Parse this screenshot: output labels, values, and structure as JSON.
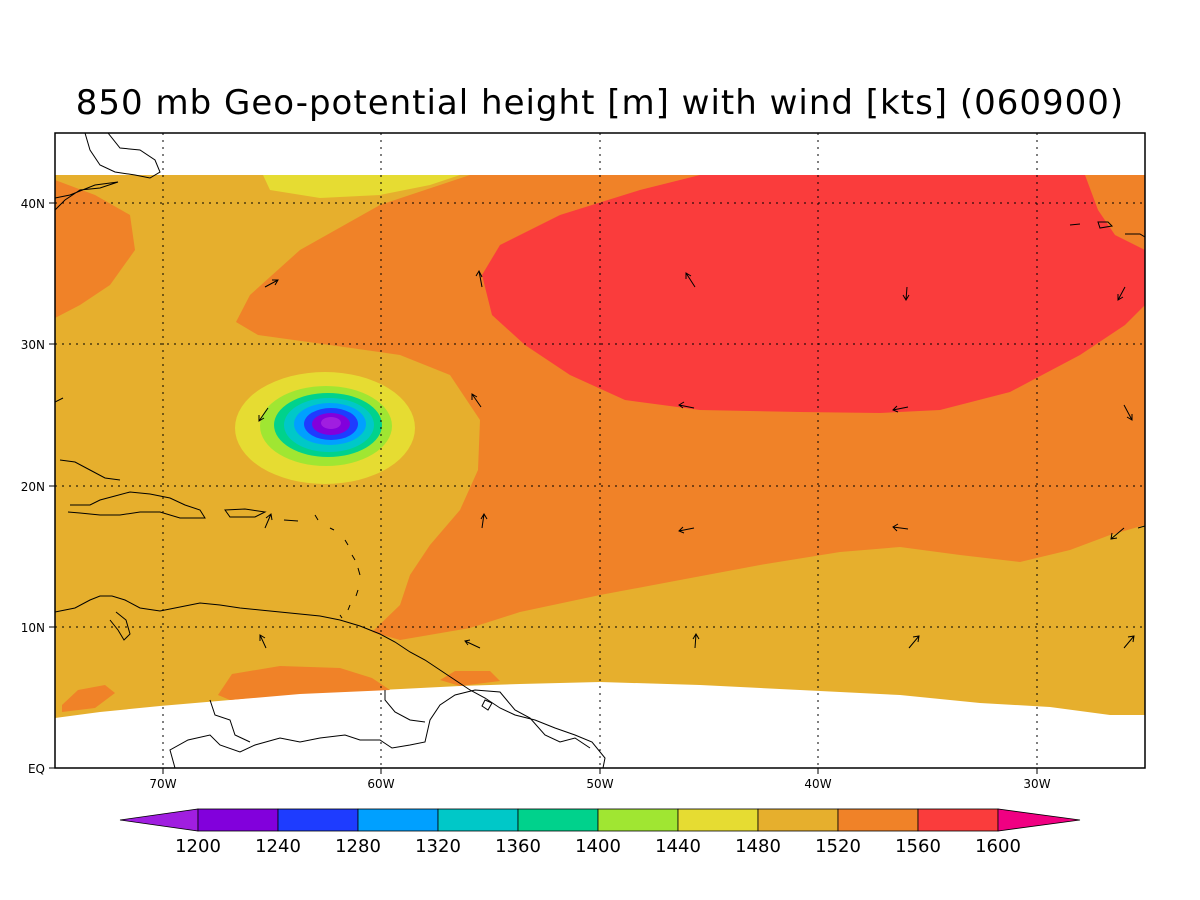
{
  "title": "850 mb Geo-potential height [m] with wind [kts] (060900)",
  "lon_labels": [
    "70W",
    "60W",
    "50W",
    "40W",
    "30W"
  ],
  "lat_labels": [
    "40N",
    "30N",
    "20N",
    "10N",
    "EQ"
  ],
  "colorbar": {
    "labels": [
      "1200",
      "1240",
      "1280",
      "1320",
      "1360",
      "1400",
      "1440",
      "1480",
      "1520",
      "1560",
      "1600"
    ],
    "colors": [
      "#a01ee0",
      "#8200dc",
      "#1e3cff",
      "#00a0ff",
      "#00c8c8",
      "#00d28c",
      "#a0e632",
      "#e6dc32",
      "#e6af2d",
      "#f08228",
      "#fa3c3c",
      "#f00082"
    ]
  },
  "field": {
    "background_level": "1520",
    "regions": [
      {
        "level": "1560",
        "color": "#f08228",
        "name": "central-atlantic-ridge"
      },
      {
        "level": "1600",
        "color": "#fa3c3c",
        "name": "subtropical-high-core"
      },
      {
        "level": "1480",
        "color": "#e6dc32",
        "name": "northern-trough"
      },
      {
        "level": "1200",
        "color": "#8200dc",
        "name": "cyclone-low-center"
      }
    ]
  }
}
